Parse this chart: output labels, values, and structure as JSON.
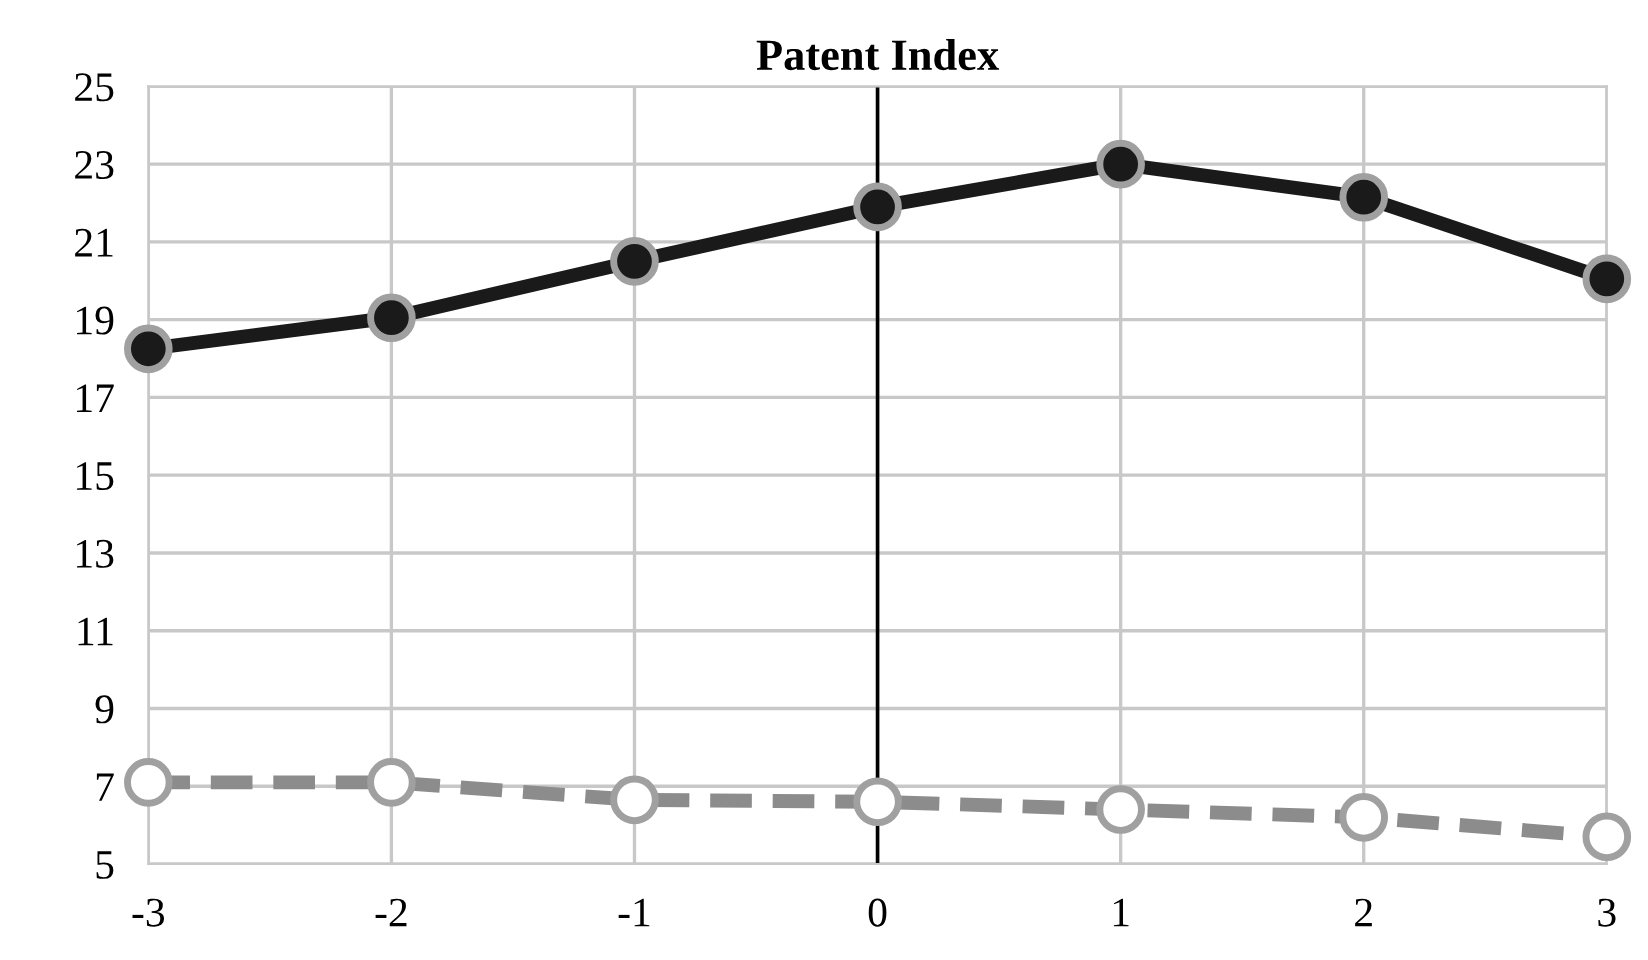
{
  "chart_data": {
    "type": "line",
    "title": "Patent Index",
    "x": [
      -3,
      -2,
      -1,
      0,
      1,
      2,
      3
    ],
    "series": [
      {
        "color": "#1a1a1a",
        "line_style": "solid",
        "values": [
          18.25,
          19.05,
          20.5,
          21.9,
          23.0,
          22.15,
          20.05
        ]
      },
      {
        "color": "#8c8c8c",
        "line_style": "dashed",
        "values": [
          7.1,
          7.1,
          6.65,
          6.6,
          6.4,
          6.2,
          5.7
        ]
      }
    ],
    "xlim": [
      -3,
      3
    ],
    "xticks": [
      -3,
      -2,
      -1,
      0,
      1,
      2,
      3
    ],
    "ylim": [
      5,
      25
    ],
    "yticks": [
      5,
      7,
      9,
      11,
      13,
      15,
      17,
      19,
      21,
      23,
      25
    ],
    "ref_lines": [
      {
        "axis": "x",
        "value": 0,
        "color": "#000000"
      }
    ],
    "grid": true,
    "marker": "circle",
    "legend": false
  }
}
